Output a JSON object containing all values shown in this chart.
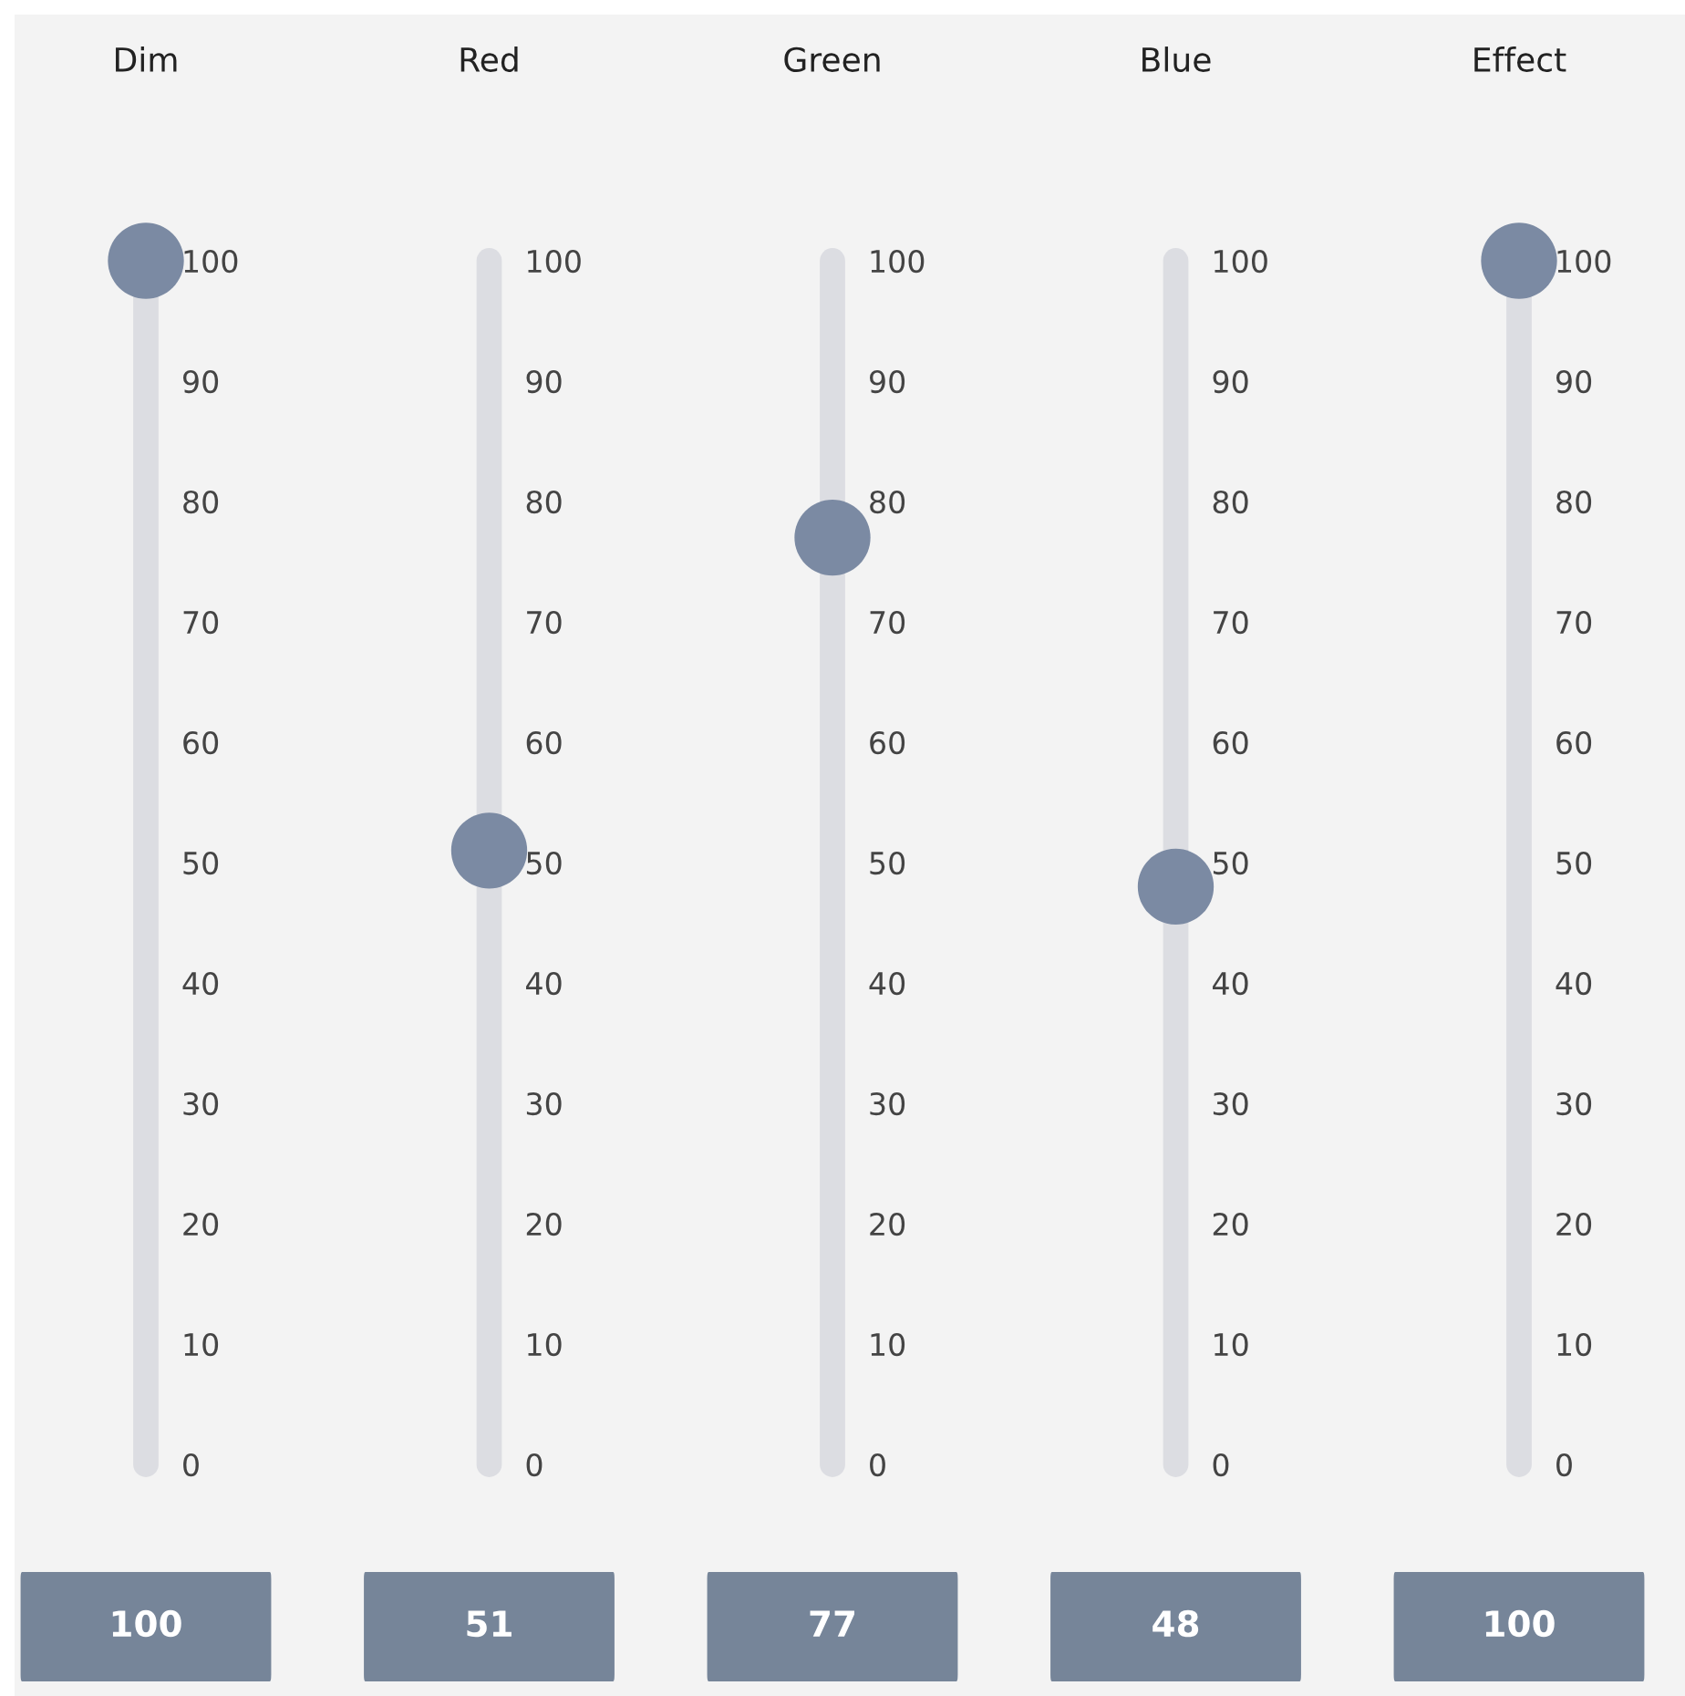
{
  "chart_data": [
    {
      "type": "scatter",
      "categories": [
        "Dim"
      ],
      "values": [
        100
      ],
      "color": "#7b8aa3",
      "marker": "circle",
      "ylim": [
        0,
        100
      ],
      "yticks": [
        0,
        10,
        20,
        30,
        40,
        50,
        60,
        70,
        80,
        90,
        100
      ],
      "annotations": [
        "100"
      ]
    },
    {
      "type": "scatter",
      "categories": [
        "Red"
      ],
      "values": [
        51
      ],
      "color": "#7b8aa3",
      "marker": "circle",
      "ylim": [
        0,
        100
      ],
      "yticks": [
        0,
        10,
        20,
        30,
        40,
        50,
        60,
        70,
        80,
        90,
        100
      ],
      "annotations": [
        "51"
      ]
    },
    {
      "type": "scatter",
      "categories": [
        "Green"
      ],
      "values": [
        77
      ],
      "color": "#7b8aa3",
      "marker": "circle",
      "ylim": [
        0,
        100
      ],
      "yticks": [
        0,
        10,
        20,
        30,
        40,
        50,
        60,
        70,
        80,
        90,
        100
      ],
      "annotations": [
        "77"
      ]
    },
    {
      "type": "scatter",
      "categories": [
        "Blue"
      ],
      "values": [
        48
      ],
      "color": "#7b8aa3",
      "marker": "circle",
      "ylim": [
        0,
        100
      ],
      "yticks": [
        0,
        10,
        20,
        30,
        40,
        50,
        60,
        70,
        80,
        90,
        100
      ],
      "annotations": [
        "48"
      ]
    },
    {
      "type": "scatter",
      "categories": [
        "Effect"
      ],
      "values": [
        100
      ],
      "color": "#7b8aa3",
      "marker": "circle",
      "ylim": [
        0,
        100
      ],
      "yticks": [
        0,
        10,
        20,
        30,
        40,
        50,
        60,
        70,
        80,
        90,
        100
      ],
      "annotations": [
        "100"
      ]
    }
  ]
}
